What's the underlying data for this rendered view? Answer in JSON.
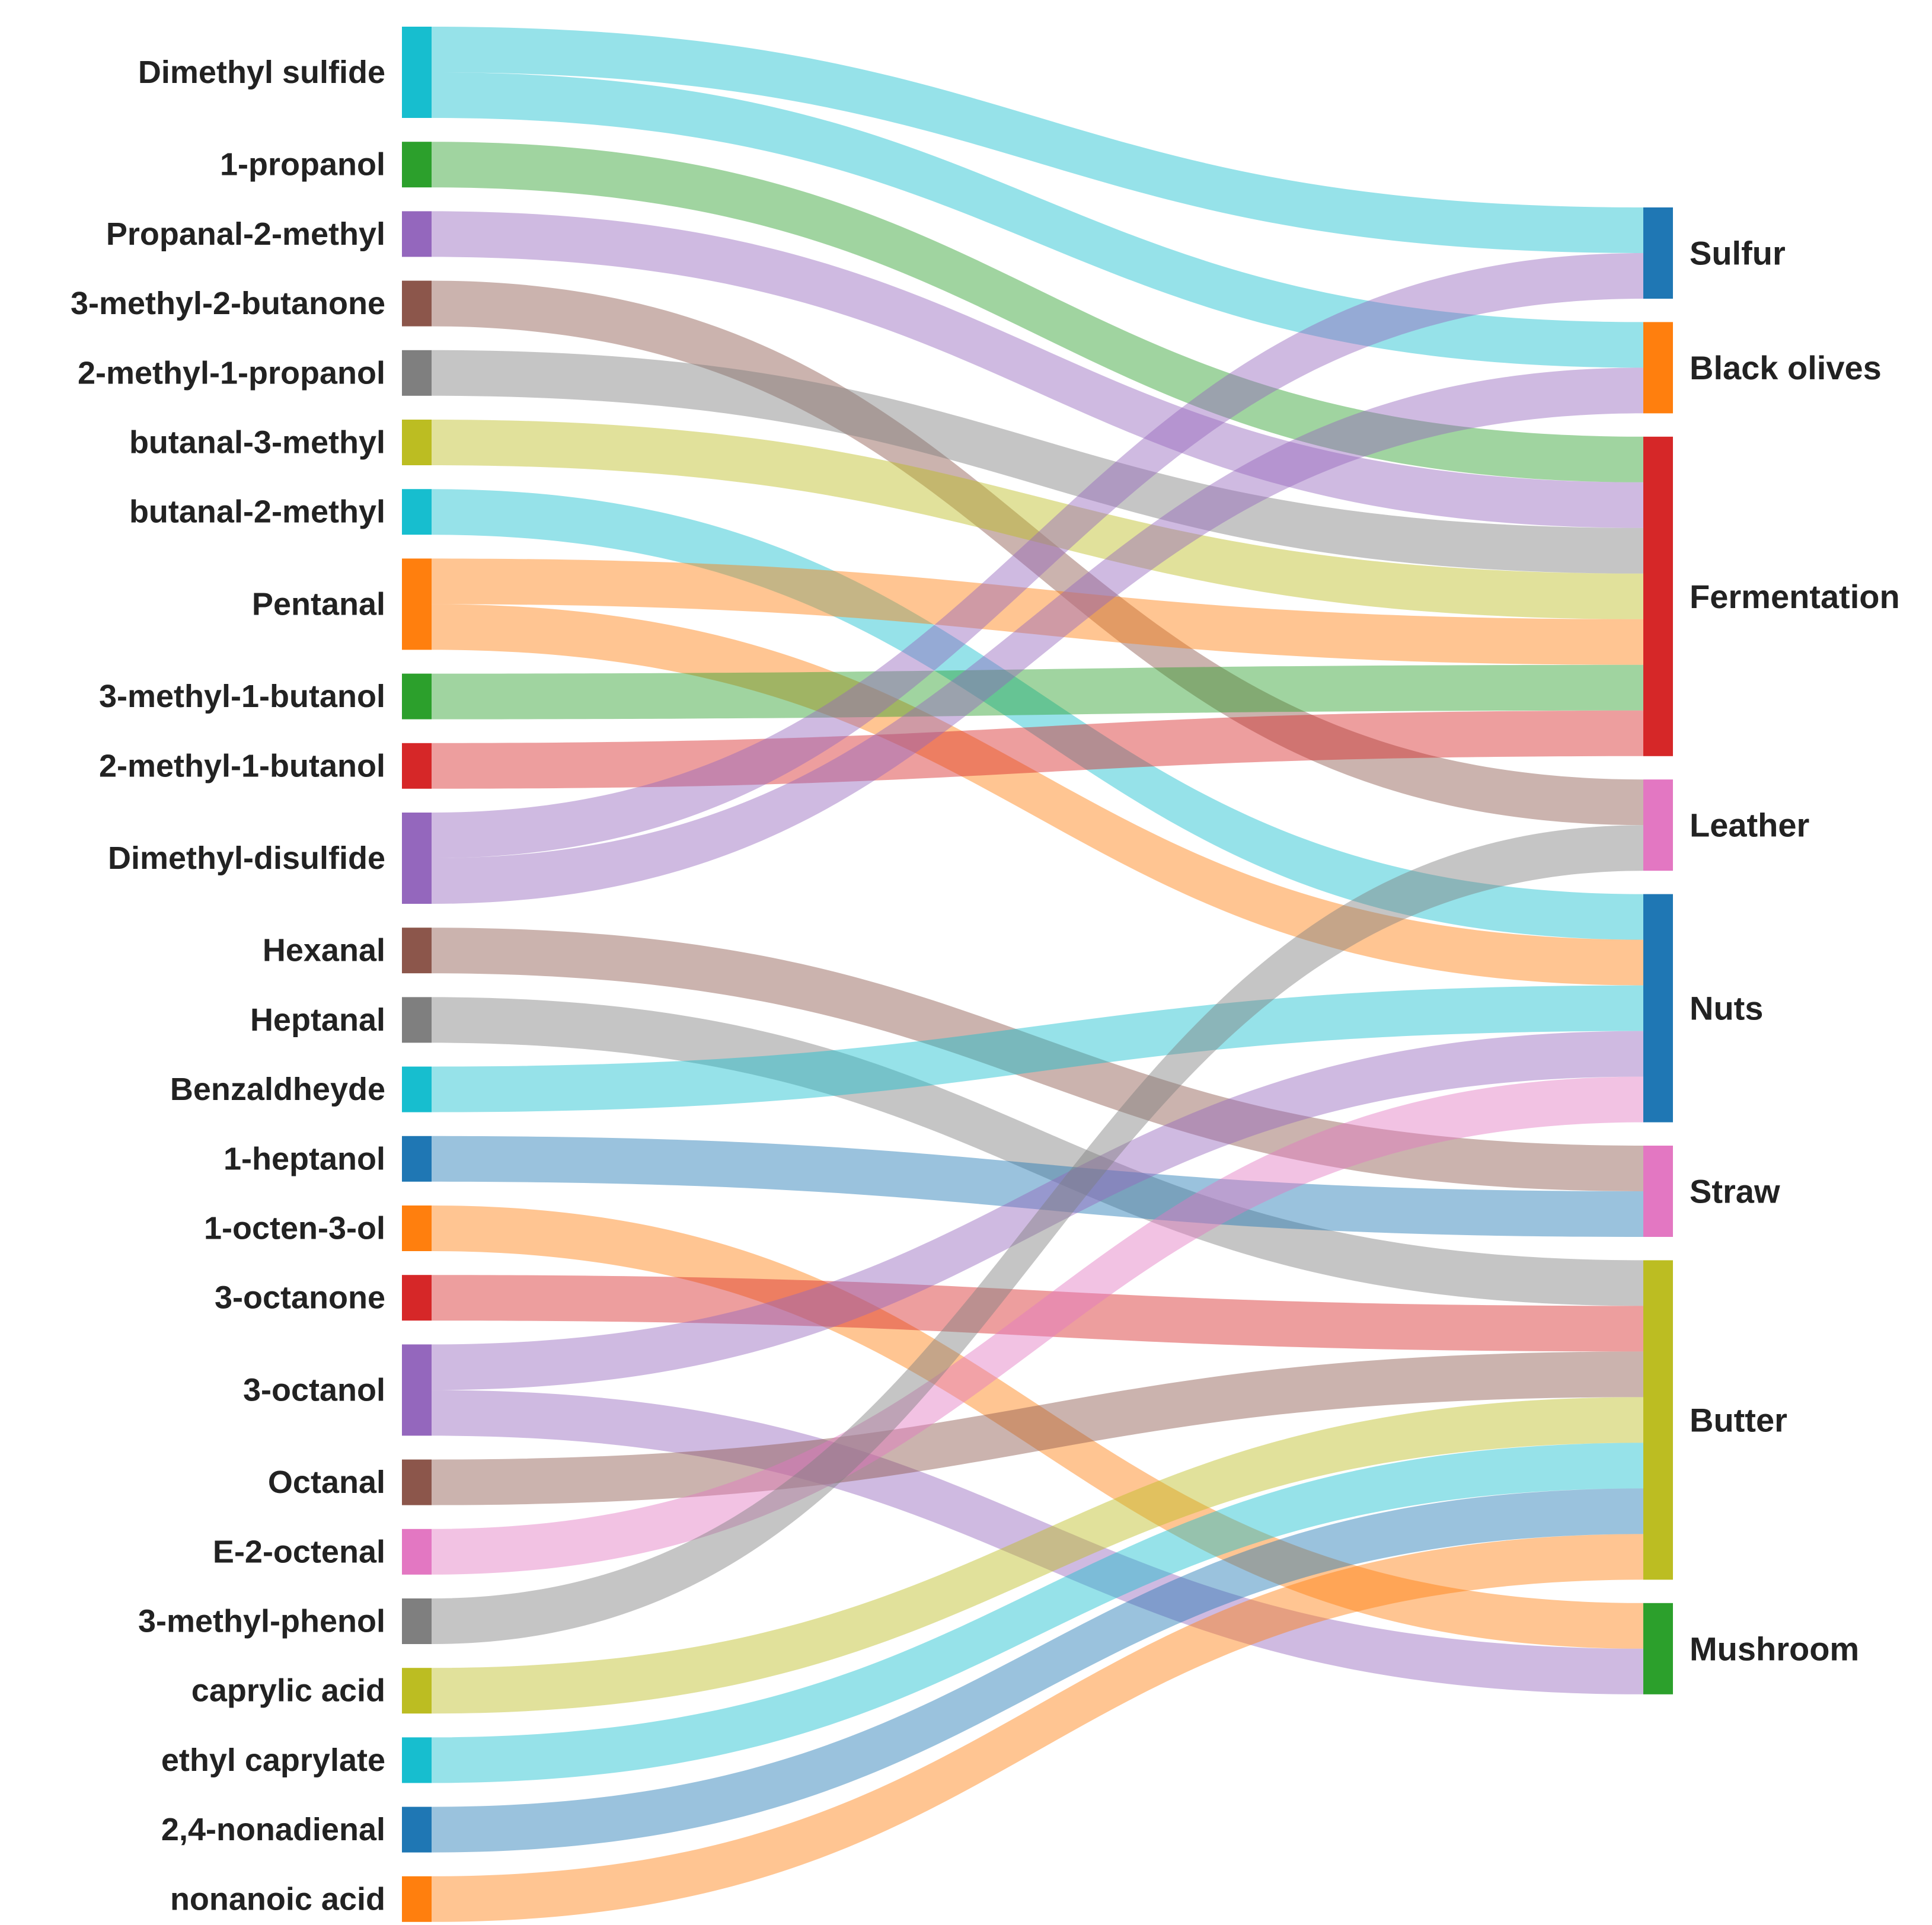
{
  "chart_data": {
    "type": "sankey",
    "colors": {
      "blue": "#1f77b4",
      "orange": "#ff7f0e",
      "green": "#2ca02c",
      "red": "#d62728",
      "purple": "#9467bd",
      "brown": "#8c564b",
      "pink": "#e377c2",
      "gray": "#7f7f7f",
      "olive": "#bcbd22",
      "cyan": "#17becf"
    },
    "sources": [
      {
        "name": "Dimethyl sulfide",
        "color": "cyan"
      },
      {
        "name": "1-propanol",
        "color": "green"
      },
      {
        "name": "Propanal-2-methyl",
        "color": "purple"
      },
      {
        "name": "3-methyl-2-butanone",
        "color": "brown"
      },
      {
        "name": "2-methyl-1-propanol",
        "color": "gray"
      },
      {
        "name": "butanal-3-methyl",
        "color": "olive"
      },
      {
        "name": "butanal-2-methyl",
        "color": "cyan"
      },
      {
        "name": "Pentanal",
        "color": "orange"
      },
      {
        "name": "3-methyl-1-butanol",
        "color": "green"
      },
      {
        "name": "2-methyl-1-butanol",
        "color": "red"
      },
      {
        "name": "Dimethyl-disulfide",
        "color": "purple"
      },
      {
        "name": "Hexanal",
        "color": "brown"
      },
      {
        "name": "Heptanal",
        "color": "gray"
      },
      {
        "name": "Benzaldheyde",
        "color": "cyan"
      },
      {
        "name": "1-heptanol",
        "color": "blue"
      },
      {
        "name": "1-octen-3-ol",
        "color": "orange"
      },
      {
        "name": "3-octanone",
        "color": "red"
      },
      {
        "name": "3-octanol",
        "color": "purple"
      },
      {
        "name": "Octanal",
        "color": "brown"
      },
      {
        "name": "E-2-octenal",
        "color": "pink"
      },
      {
        "name": "3-methyl-phenol",
        "color": "gray"
      },
      {
        "name": "caprylic acid",
        "color": "olive"
      },
      {
        "name": "ethyl caprylate",
        "color": "cyan"
      },
      {
        "name": "2,4-nonadienal",
        "color": "blue"
      },
      {
        "name": "nonanoic acid",
        "color": "orange"
      }
    ],
    "targets": [
      {
        "name": "Sulfur",
        "color": "blue"
      },
      {
        "name": "Black olives",
        "color": "orange"
      },
      {
        "name": "Fermentation",
        "color": "red"
      },
      {
        "name": "Leather",
        "color": "pink"
      },
      {
        "name": "Nuts",
        "color": "blue"
      },
      {
        "name": "Straw",
        "color": "pink"
      },
      {
        "name": "Butter",
        "color": "olive"
      },
      {
        "name": "Mushroom",
        "color": "green"
      }
    ],
    "links": [
      {
        "source": 0,
        "target": 0,
        "value": 1
      },
      {
        "source": 0,
        "target": 1,
        "value": 1
      },
      {
        "source": 1,
        "target": 2,
        "value": 1
      },
      {
        "source": 2,
        "target": 2,
        "value": 1
      },
      {
        "source": 3,
        "target": 3,
        "value": 1
      },
      {
        "source": 4,
        "target": 2,
        "value": 1
      },
      {
        "source": 5,
        "target": 2,
        "value": 1
      },
      {
        "source": 6,
        "target": 4,
        "value": 1
      },
      {
        "source": 7,
        "target": 2,
        "value": 1
      },
      {
        "source": 7,
        "target": 4,
        "value": 1
      },
      {
        "source": 8,
        "target": 2,
        "value": 1
      },
      {
        "source": 9,
        "target": 2,
        "value": 1
      },
      {
        "source": 10,
        "target": 0,
        "value": 1
      },
      {
        "source": 10,
        "target": 1,
        "value": 1
      },
      {
        "source": 11,
        "target": 5,
        "value": 1
      },
      {
        "source": 12,
        "target": 6,
        "value": 1
      },
      {
        "source": 13,
        "target": 4,
        "value": 1
      },
      {
        "source": 14,
        "target": 5,
        "value": 1
      },
      {
        "source": 15,
        "target": 7,
        "value": 1
      },
      {
        "source": 16,
        "target": 6,
        "value": 1
      },
      {
        "source": 17,
        "target": 4,
        "value": 1
      },
      {
        "source": 17,
        "target": 7,
        "value": 1
      },
      {
        "source": 18,
        "target": 6,
        "value": 1
      },
      {
        "source": 19,
        "target": 4,
        "value": 1
      },
      {
        "source": 20,
        "target": 3,
        "value": 1
      },
      {
        "source": 21,
        "target": 6,
        "value": 1
      },
      {
        "source": 22,
        "target": 6,
        "value": 1
      },
      {
        "source": 23,
        "target": 6,
        "value": 1
      },
      {
        "source": 24,
        "target": 6,
        "value": 1
      }
    ]
  }
}
